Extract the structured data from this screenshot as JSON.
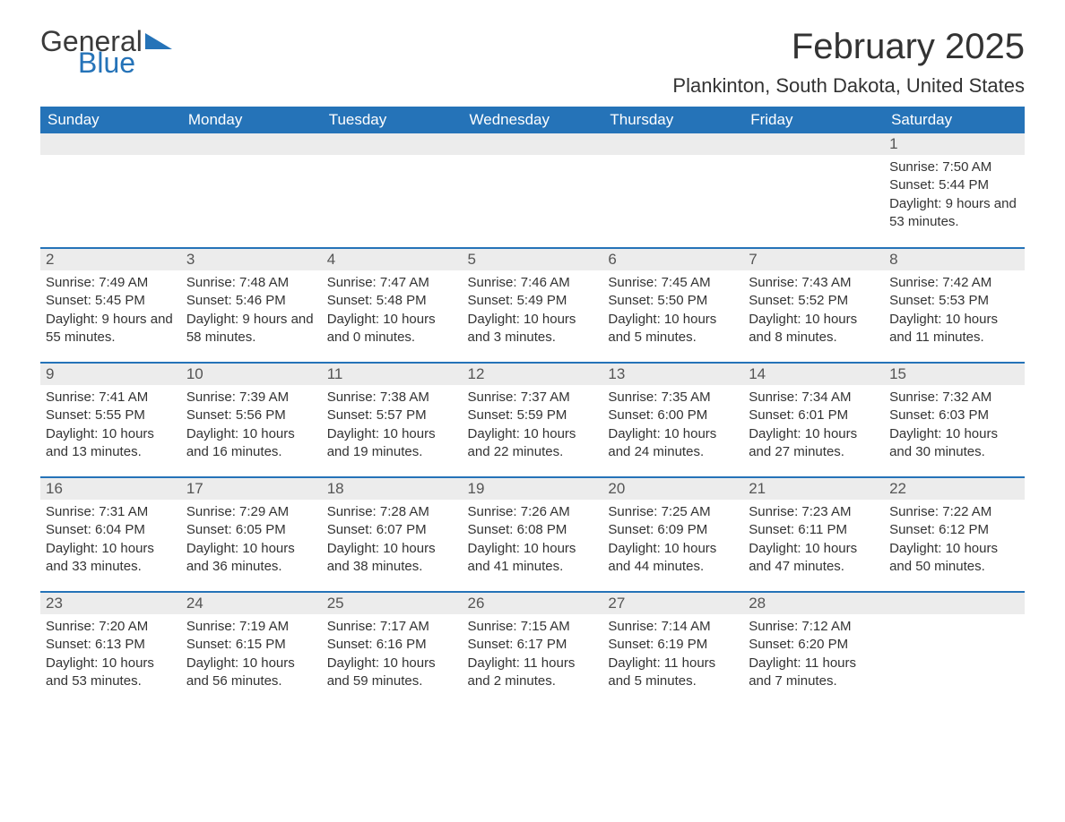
{
  "logo": {
    "text1": "General",
    "text2": "Blue",
    "triangle_color": "#2573b8"
  },
  "title": "February 2025",
  "location": "Plankinton, South Dakota, United States",
  "colors": {
    "header_bg": "#2573b8",
    "header_text": "#ffffff",
    "daynum_bg": "#ececec",
    "row_border": "#2573b8",
    "body_text": "#333333"
  },
  "day_headers": [
    "Sunday",
    "Monday",
    "Tuesday",
    "Wednesday",
    "Thursday",
    "Friday",
    "Saturday"
  ],
  "weeks": [
    [
      {
        "num": "",
        "lines": []
      },
      {
        "num": "",
        "lines": []
      },
      {
        "num": "",
        "lines": []
      },
      {
        "num": "",
        "lines": []
      },
      {
        "num": "",
        "lines": []
      },
      {
        "num": "",
        "lines": []
      },
      {
        "num": "1",
        "lines": [
          "Sunrise: 7:50 AM",
          "Sunset: 5:44 PM",
          "Daylight: 9 hours and 53 minutes."
        ]
      }
    ],
    [
      {
        "num": "2",
        "lines": [
          "Sunrise: 7:49 AM",
          "Sunset: 5:45 PM",
          "Daylight: 9 hours and 55 minutes."
        ]
      },
      {
        "num": "3",
        "lines": [
          "Sunrise: 7:48 AM",
          "Sunset: 5:46 PM",
          "Daylight: 9 hours and 58 minutes."
        ]
      },
      {
        "num": "4",
        "lines": [
          "Sunrise: 7:47 AM",
          "Sunset: 5:48 PM",
          "Daylight: 10 hours and 0 minutes."
        ]
      },
      {
        "num": "5",
        "lines": [
          "Sunrise: 7:46 AM",
          "Sunset: 5:49 PM",
          "Daylight: 10 hours and 3 minutes."
        ]
      },
      {
        "num": "6",
        "lines": [
          "Sunrise: 7:45 AM",
          "Sunset: 5:50 PM",
          "Daylight: 10 hours and 5 minutes."
        ]
      },
      {
        "num": "7",
        "lines": [
          "Sunrise: 7:43 AM",
          "Sunset: 5:52 PM",
          "Daylight: 10 hours and 8 minutes."
        ]
      },
      {
        "num": "8",
        "lines": [
          "Sunrise: 7:42 AM",
          "Sunset: 5:53 PM",
          "Daylight: 10 hours and 11 minutes."
        ]
      }
    ],
    [
      {
        "num": "9",
        "lines": [
          "Sunrise: 7:41 AM",
          "Sunset: 5:55 PM",
          "Daylight: 10 hours and 13 minutes."
        ]
      },
      {
        "num": "10",
        "lines": [
          "Sunrise: 7:39 AM",
          "Sunset: 5:56 PM",
          "Daylight: 10 hours and 16 minutes."
        ]
      },
      {
        "num": "11",
        "lines": [
          "Sunrise: 7:38 AM",
          "Sunset: 5:57 PM",
          "Daylight: 10 hours and 19 minutes."
        ]
      },
      {
        "num": "12",
        "lines": [
          "Sunrise: 7:37 AM",
          "Sunset: 5:59 PM",
          "Daylight: 10 hours and 22 minutes."
        ]
      },
      {
        "num": "13",
        "lines": [
          "Sunrise: 7:35 AM",
          "Sunset: 6:00 PM",
          "Daylight: 10 hours and 24 minutes."
        ]
      },
      {
        "num": "14",
        "lines": [
          "Sunrise: 7:34 AM",
          "Sunset: 6:01 PM",
          "Daylight: 10 hours and 27 minutes."
        ]
      },
      {
        "num": "15",
        "lines": [
          "Sunrise: 7:32 AM",
          "Sunset: 6:03 PM",
          "Daylight: 10 hours and 30 minutes."
        ]
      }
    ],
    [
      {
        "num": "16",
        "lines": [
          "Sunrise: 7:31 AM",
          "Sunset: 6:04 PM",
          "Daylight: 10 hours and 33 minutes."
        ]
      },
      {
        "num": "17",
        "lines": [
          "Sunrise: 7:29 AM",
          "Sunset: 6:05 PM",
          "Daylight: 10 hours and 36 minutes."
        ]
      },
      {
        "num": "18",
        "lines": [
          "Sunrise: 7:28 AM",
          "Sunset: 6:07 PM",
          "Daylight: 10 hours and 38 minutes."
        ]
      },
      {
        "num": "19",
        "lines": [
          "Sunrise: 7:26 AM",
          "Sunset: 6:08 PM",
          "Daylight: 10 hours and 41 minutes."
        ]
      },
      {
        "num": "20",
        "lines": [
          "Sunrise: 7:25 AM",
          "Sunset: 6:09 PM",
          "Daylight: 10 hours and 44 minutes."
        ]
      },
      {
        "num": "21",
        "lines": [
          "Sunrise: 7:23 AM",
          "Sunset: 6:11 PM",
          "Daylight: 10 hours and 47 minutes."
        ]
      },
      {
        "num": "22",
        "lines": [
          "Sunrise: 7:22 AM",
          "Sunset: 6:12 PM",
          "Daylight: 10 hours and 50 minutes."
        ]
      }
    ],
    [
      {
        "num": "23",
        "lines": [
          "Sunrise: 7:20 AM",
          "Sunset: 6:13 PM",
          "Daylight: 10 hours and 53 minutes."
        ]
      },
      {
        "num": "24",
        "lines": [
          "Sunrise: 7:19 AM",
          "Sunset: 6:15 PM",
          "Daylight: 10 hours and 56 minutes."
        ]
      },
      {
        "num": "25",
        "lines": [
          "Sunrise: 7:17 AM",
          "Sunset: 6:16 PM",
          "Daylight: 10 hours and 59 minutes."
        ]
      },
      {
        "num": "26",
        "lines": [
          "Sunrise: 7:15 AM",
          "Sunset: 6:17 PM",
          "Daylight: 11 hours and 2 minutes."
        ]
      },
      {
        "num": "27",
        "lines": [
          "Sunrise: 7:14 AM",
          "Sunset: 6:19 PM",
          "Daylight: 11 hours and 5 minutes."
        ]
      },
      {
        "num": "28",
        "lines": [
          "Sunrise: 7:12 AM",
          "Sunset: 6:20 PM",
          "Daylight: 11 hours and 7 minutes."
        ]
      },
      {
        "num": "",
        "lines": []
      }
    ]
  ]
}
